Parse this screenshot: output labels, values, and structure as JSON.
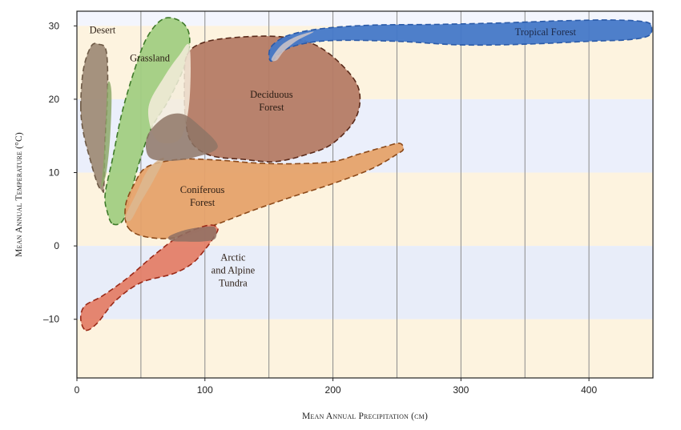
{
  "chart_data": {
    "type": "area",
    "title": "",
    "xlabel": "Mean Annual Precipitation (cm)",
    "ylabel": "Mean Annual Temperature (°C)",
    "xlim": [
      0,
      450
    ],
    "ylim": [
      -18,
      32
    ],
    "x_ticks": [
      0,
      100,
      200,
      300,
      400
    ],
    "x_tick_labels": [
      "0",
      "100",
      "200",
      "300",
      "400"
    ],
    "x_gridlines": [
      50,
      100,
      150,
      200,
      250,
      300,
      350,
      400
    ],
    "y_ticks": [
      30,
      20,
      10,
      0,
      -10
    ],
    "y_tick_labels": [
      "30",
      "20",
      "10",
      "0",
      "–10"
    ],
    "background_bands": [
      {
        "from": 30,
        "to": 32,
        "color": "#f3f5fd"
      },
      {
        "from": 20,
        "to": 30,
        "color": "#fdf3df"
      },
      {
        "from": 10,
        "to": 20,
        "color": "#ebeffb"
      },
      {
        "from": 0,
        "to": 10,
        "color": "#fdf3df"
      },
      {
        "from": -10,
        "to": 0,
        "color": "#e8edf9"
      },
      {
        "from": -18,
        "to": -10,
        "color": "#fdf3df"
      }
    ],
    "series": [
      {
        "name": "Desert",
        "label_lines": [
          "Desert"
        ],
        "label_at": [
          20,
          29
        ],
        "fill": "#a08c78",
        "stroke": "#6e5a46",
        "outline": [
          [
            3,
            19
          ],
          [
            5,
            24
          ],
          [
            11,
            27.2
          ],
          [
            17,
            27.5
          ],
          [
            23,
            26.5
          ],
          [
            24,
            21
          ],
          [
            22,
            14
          ],
          [
            21,
            8
          ],
          [
            20,
            7.5
          ],
          [
            16,
            8.5
          ],
          [
            10,
            12
          ],
          [
            5,
            15.5
          ]
        ]
      },
      {
        "name": "Grassland",
        "label_lines": [
          "Grassland"
        ],
        "label_at": [
          57,
          25.2
        ],
        "fill": "#a2ce82",
        "stroke": "#3f7a2a",
        "outline": [
          [
            28,
            3
          ],
          [
            36,
            3.5
          ],
          [
            42,
            7
          ],
          [
            48,
            11
          ],
          [
            58,
            16
          ],
          [
            72,
            20
          ],
          [
            85,
            25
          ],
          [
            88,
            28.5
          ],
          [
            82,
            30.5
          ],
          [
            68,
            31
          ],
          [
            55,
            28.5
          ],
          [
            45,
            24
          ],
          [
            35,
            18
          ],
          [
            28,
            12
          ],
          [
            22,
            7
          ],
          [
            24,
            4.5
          ]
        ]
      },
      {
        "name": "Deciduous Forest",
        "label_lines": [
          "Deciduous",
          "Forest"
        ],
        "label_at": [
          152,
          20.2
        ],
        "fill": "#b57b65",
        "stroke": "#5a2a1a",
        "outline": [
          [
            86,
            26
          ],
          [
            100,
            27.8
          ],
          [
            130,
            28.5
          ],
          [
            160,
            28.5
          ],
          [
            185,
            27.5
          ],
          [
            205,
            25
          ],
          [
            220,
            21.5
          ],
          [
            218,
            17.5
          ],
          [
            200,
            14
          ],
          [
            180,
            12.5
          ],
          [
            155,
            11.5
          ],
          [
            130,
            11.8
          ],
          [
            105,
            12.3
          ],
          [
            90,
            14
          ],
          [
            85,
            17
          ],
          [
            84,
            22
          ]
        ]
      },
      {
        "name": "Coniferous Forest",
        "label_lines": [
          "Coniferous",
          "Forest"
        ],
        "label_at": [
          98,
          7.2
        ],
        "fill": "#e6a26a",
        "stroke": "#8c4a1a",
        "outline": [
          [
            40,
            2.5
          ],
          [
            55,
            1.2
          ],
          [
            80,
            1.2
          ],
          [
            110,
            3
          ],
          [
            140,
            5
          ],
          [
            170,
            6.8
          ],
          [
            200,
            8.5
          ],
          [
            230,
            10.5
          ],
          [
            250,
            12.5
          ],
          [
            255,
            13.2
          ],
          [
            252,
            14
          ],
          [
            240,
            13.5
          ],
          [
            220,
            12.5
          ],
          [
            200,
            11.5
          ],
          [
            170,
            11.2
          ],
          [
            140,
            11.3
          ],
          [
            110,
            11.7
          ],
          [
            80,
            11.8
          ],
          [
            55,
            10.8
          ],
          [
            45,
            8.5
          ],
          [
            38,
            5.5
          ]
        ]
      },
      {
        "name": "Arctic and Alpine Tundra",
        "label_lines": [
          "Arctic",
          "and Alpine",
          "Tundra"
        ],
        "label_at": [
          122,
          -2
        ],
        "fill": "#e48068",
        "stroke": "#9a2a18",
        "outline": [
          [
            7,
            -11.5
          ],
          [
            16,
            -10.5
          ],
          [
            30,
            -7.5
          ],
          [
            50,
            -5
          ],
          [
            75,
            -3.8
          ],
          [
            90,
            -2.4
          ],
          [
            100,
            -0.5
          ],
          [
            107,
            1.2
          ],
          [
            110,
            2.4
          ],
          [
            102,
            2.8
          ],
          [
            80,
            1.3
          ],
          [
            60,
            -1.3
          ],
          [
            40,
            -4.3
          ],
          [
            20,
            -6.8
          ],
          [
            6,
            -8.2
          ],
          [
            3,
            -10
          ]
        ]
      },
      {
        "name": "Tropical Forest",
        "label_lines": [
          "Tropical Forest"
        ],
        "label_at": [
          366,
          28.7
        ],
        "fill": "#4478c8",
        "stroke": "#2a5aa8",
        "outline": [
          [
            152,
            25.2
          ],
          [
            160,
            26.5
          ],
          [
            175,
            27.5
          ],
          [
            200,
            28
          ],
          [
            250,
            27.9
          ],
          [
            300,
            27.4
          ],
          [
            350,
            27.5
          ],
          [
            400,
            27.9
          ],
          [
            430,
            28.1
          ],
          [
            446,
            28.6
          ],
          [
            449,
            29.6
          ],
          [
            445,
            30.5
          ],
          [
            420,
            30.8
          ],
          [
            380,
            30.7
          ],
          [
            330,
            30.4
          ],
          [
            280,
            30.2
          ],
          [
            230,
            30.1
          ],
          [
            190,
            29.6
          ],
          [
            165,
            28.7
          ],
          [
            153,
            27.4
          ],
          [
            150,
            26.2
          ]
        ]
      }
    ],
    "transition_blends": [
      {
        "between": [
          "Grassland",
          "Deciduous Forest"
        ],
        "fill": "#f4ecdc",
        "outline": [
          [
            56,
            19
          ],
          [
            68,
            23
          ],
          [
            80,
            26
          ],
          [
            88,
            27.2
          ],
          [
            88,
            20
          ],
          [
            82,
            15
          ],
          [
            70,
            14
          ],
          [
            60,
            15
          ]
        ]
      },
      {
        "between": [
          "Grassland",
          "Coniferous Forest"
        ],
        "fill": "#dcb890",
        "outline": [
          [
            38,
            4
          ],
          [
            46,
            7
          ],
          [
            56,
            10.5
          ],
          [
            68,
            12
          ],
          [
            60,
            9
          ],
          [
            50,
            6
          ],
          [
            42,
            3.5
          ]
        ]
      },
      {
        "between": [
          "Deciduous Forest",
          "Coniferous Forest"
        ],
        "fill": "#8e7666",
        "outline": [
          [
            55,
            15
          ],
          [
            68,
            17.5
          ],
          [
            82,
            18
          ],
          [
            95,
            16.5
          ],
          [
            110,
            13.5
          ],
          [
            90,
            12
          ],
          [
            70,
            11.6
          ],
          [
            56,
            12.2
          ]
        ]
      },
      {
        "between": [
          "Coniferous Forest",
          "Arctic and Alpine Tundra"
        ],
        "fill": "#8e7064",
        "outline": [
          [
            72,
            1.3
          ],
          [
            85,
            2.2
          ],
          [
            100,
            2.6
          ],
          [
            108,
            2.5
          ],
          [
            108,
            1
          ],
          [
            98,
            0.6
          ],
          [
            85,
            0.6
          ],
          [
            74,
            0.7
          ]
        ]
      },
      {
        "between": [
          "Deciduous Forest",
          "Tropical Forest"
        ],
        "fill": "#cfc6c8",
        "outline": [
          [
            152,
            25.5
          ],
          [
            160,
            27.4
          ],
          [
            172,
            28.6
          ],
          [
            185,
            29.2
          ],
          [
            172,
            28
          ],
          [
            162,
            26.6
          ],
          [
            156,
            25.3
          ]
        ]
      },
      {
        "between": [
          "Desert",
          "Grassland"
        ],
        "fill": "#8da868",
        "outline": [
          [
            19,
            8
          ],
          [
            23,
            10
          ],
          [
            26,
            15
          ],
          [
            27,
            21
          ],
          [
            24,
            22
          ],
          [
            22,
            15
          ],
          [
            20,
            10
          ]
        ]
      }
    ]
  }
}
